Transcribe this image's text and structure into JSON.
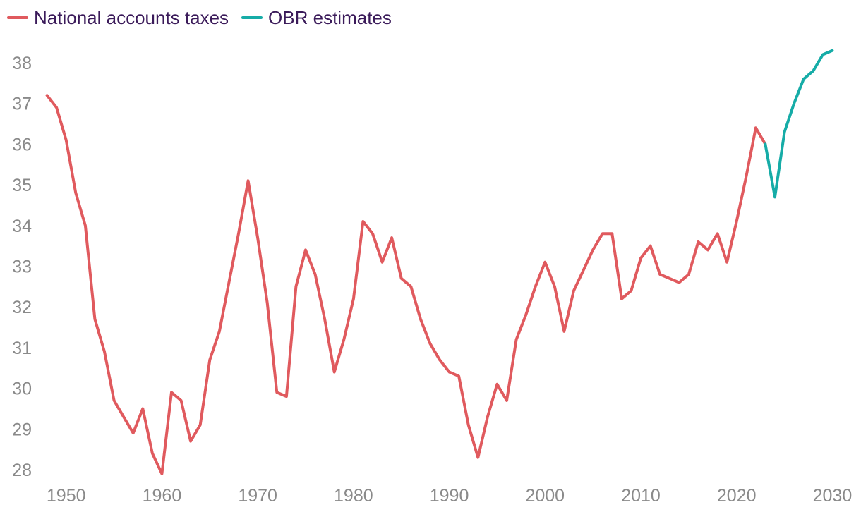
{
  "chart_data": {
    "type": "line",
    "title": "",
    "xlabel": "",
    "ylabel": "",
    "xlim": [
      1947,
      2031
    ],
    "ylim": [
      27.9,
      38.5
    ],
    "x_ticks": [
      1950,
      1960,
      1970,
      1980,
      1990,
      2000,
      2010,
      2020,
      2030
    ],
    "y_ticks": [
      28,
      29,
      30,
      31,
      32,
      33,
      34,
      35,
      36,
      37,
      38
    ],
    "legend_position": "top-left",
    "series": [
      {
        "name": "National accounts taxes",
        "color": "#e05a5e",
        "x": [
          1948,
          1949,
          1950,
          1951,
          1952,
          1953,
          1954,
          1955,
          1956,
          1957,
          1958,
          1959,
          1960,
          1961,
          1962,
          1963,
          1964,
          1965,
          1966,
          1967,
          1968,
          1969,
          1970,
          1971,
          1972,
          1973,
          1974,
          1975,
          1976,
          1977,
          1978,
          1979,
          1980,
          1981,
          1982,
          1983,
          1984,
          1985,
          1986,
          1987,
          1988,
          1989,
          1990,
          1991,
          1992,
          1993,
          1994,
          1995,
          1996,
          1997,
          1998,
          1999,
          2000,
          2001,
          2002,
          2003,
          2004,
          2005,
          2006,
          2007,
          2008,
          2009,
          2010,
          2011,
          2012,
          2013,
          2014,
          2015,
          2016,
          2017,
          2018,
          2019,
          2020,
          2021,
          2022,
          2023
        ],
        "values": [
          37.2,
          36.9,
          36.1,
          34.8,
          34.0,
          31.7,
          30.9,
          29.7,
          29.3,
          28.9,
          29.5,
          28.4,
          27.9,
          29.9,
          29.7,
          28.7,
          29.1,
          30.7,
          31.4,
          32.6,
          33.8,
          35.1,
          33.7,
          32.1,
          29.9,
          29.8,
          32.5,
          33.4,
          32.8,
          31.7,
          30.4,
          31.2,
          32.2,
          34.1,
          33.8,
          33.1,
          33.7,
          32.7,
          32.5,
          31.7,
          31.1,
          30.7,
          30.4,
          30.3,
          29.1,
          28.3,
          29.3,
          30.1,
          29.7,
          31.2,
          31.8,
          32.5,
          33.1,
          32.5,
          31.4,
          32.4,
          32.9,
          33.4,
          33.8,
          33.8,
          32.2,
          32.4,
          33.2,
          33.5,
          32.8,
          32.7,
          32.6,
          32.8,
          33.6,
          33.4,
          33.8,
          33.1,
          34.1,
          35.2,
          36.4,
          36.0
        ]
      },
      {
        "name": "OBR estimates",
        "color": "#16aca7",
        "x": [
          2023,
          2024,
          2025,
          2026,
          2027,
          2028,
          2029,
          2030
        ],
        "values": [
          36.0,
          34.7,
          36.3,
          37.0,
          37.6,
          37.8,
          38.2,
          38.3
        ]
      }
    ]
  }
}
